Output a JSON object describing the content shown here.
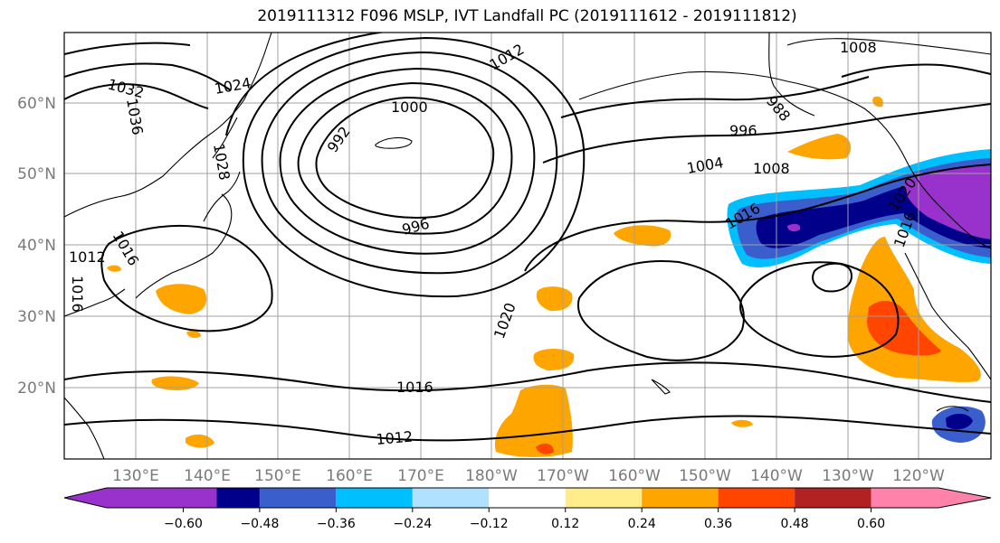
{
  "title": "2019111312 F096 MSLP, IVT Landfall PC (2019111612 - 2019111812)",
  "lat_labels": [
    "60°N",
    "50°N",
    "40°N",
    "30°N",
    "20°N"
  ],
  "lon_labels": [
    "130°E",
    "140°E",
    "150°E",
    "160°E",
    "170°E",
    "180°W",
    "170°W",
    "160°W",
    "150°W",
    "140°W",
    "130°W",
    "120°W"
  ],
  "colorbar": {
    "colors": [
      "#9932cc",
      "#00008b",
      "#3a5fcd",
      "#00bfff",
      "#b0e2ff",
      "#ffffff",
      "#ffec8b",
      "#ffa500",
      "#ff4500",
      "#b22222",
      "#ff82ab"
    ],
    "labels": [
      "−0.60",
      "−0.48",
      "−0.36",
      "−0.24",
      "−0.12",
      "0.12",
      "0.24",
      "0.36",
      "0.48",
      "0.60"
    ]
  },
  "contour_labels": [
    "1008",
    "1012",
    "1024",
    "1032",
    "1036",
    "1028",
    "1000",
    "992",
    "988",
    "996",
    "1004",
    "1008",
    "1016",
    "1020",
    "1016",
    "1012",
    "1020",
    "1012",
    "1016",
    "1016",
    "996",
    "1016"
  ]
}
